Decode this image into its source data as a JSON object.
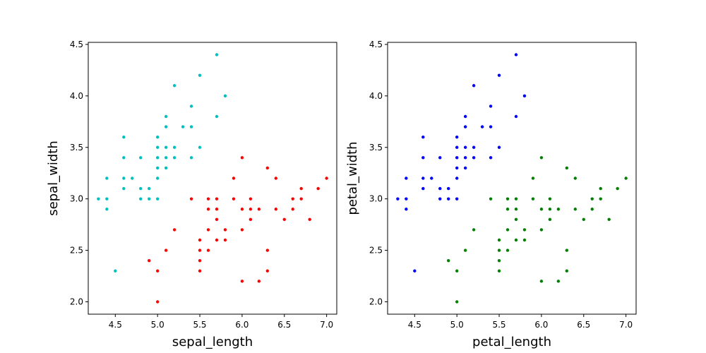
{
  "chart_data": [
    {
      "type": "scatter",
      "xlabel": "sepal_length",
      "ylabel": "sepal_width",
      "xlim": [
        4.18,
        7.12
      ],
      "ylim": [
        1.88,
        4.52
      ],
      "xticks": [
        "4.5",
        "5.0",
        "5.5",
        "6.0",
        "6.5",
        "7.0"
      ],
      "yticks": [
        "2.0",
        "2.5",
        "3.0",
        "3.5",
        "4.0",
        "4.5"
      ],
      "grid": false,
      "series": [
        {
          "color": "#00bfbf",
          "points": [
            [
              4.3,
              3.0
            ],
            [
              4.4,
              2.9
            ],
            [
              4.4,
              3.0
            ],
            [
              4.4,
              3.2
            ],
            [
              4.5,
              2.3
            ],
            [
              4.6,
              3.1
            ],
            [
              4.6,
              3.2
            ],
            [
              4.6,
              3.4
            ],
            [
              4.6,
              3.6
            ],
            [
              4.7,
              3.2
            ],
            [
              4.8,
              3.0
            ],
            [
              4.8,
              3.1
            ],
            [
              4.8,
              3.4
            ],
            [
              4.9,
              3.0
            ],
            [
              4.9,
              3.1
            ],
            [
              5.0,
              3.0
            ],
            [
              5.0,
              3.2
            ],
            [
              5.0,
              3.3
            ],
            [
              5.0,
              3.4
            ],
            [
              5.0,
              3.5
            ],
            [
              5.0,
              3.6
            ],
            [
              5.1,
              3.3
            ],
            [
              5.1,
              3.4
            ],
            [
              5.1,
              3.5
            ],
            [
              5.1,
              3.7
            ],
            [
              5.1,
              3.8
            ],
            [
              5.2,
              3.4
            ],
            [
              5.2,
              3.5
            ],
            [
              5.2,
              4.1
            ],
            [
              5.3,
              3.7
            ],
            [
              5.4,
              3.4
            ],
            [
              5.4,
              3.7
            ],
            [
              5.4,
              3.9
            ],
            [
              5.5,
              3.5
            ],
            [
              5.5,
              4.2
            ],
            [
              5.7,
              3.8
            ],
            [
              5.7,
              4.4
            ],
            [
              5.8,
              4.0
            ]
          ]
        },
        {
          "color": "#ff0000",
          "points": [
            [
              4.9,
              2.4
            ],
            [
              5.0,
              2.0
            ],
            [
              5.0,
              2.3
            ],
            [
              5.1,
              2.5
            ],
            [
              5.2,
              2.7
            ],
            [
              5.4,
              3.0
            ],
            [
              5.5,
              2.3
            ],
            [
              5.5,
              2.4
            ],
            [
              5.5,
              2.5
            ],
            [
              5.5,
              2.6
            ],
            [
              5.6,
              2.5
            ],
            [
              5.6,
              2.7
            ],
            [
              5.6,
              2.9
            ],
            [
              5.6,
              3.0
            ],
            [
              5.7,
              2.6
            ],
            [
              5.7,
              2.8
            ],
            [
              5.7,
              2.9
            ],
            [
              5.7,
              3.0
            ],
            [
              5.8,
              2.6
            ],
            [
              5.8,
              2.7
            ],
            [
              5.9,
              3.0
            ],
            [
              5.9,
              3.2
            ],
            [
              6.0,
              2.2
            ],
            [
              6.0,
              2.7
            ],
            [
              6.0,
              2.9
            ],
            [
              6.0,
              3.4
            ],
            [
              6.1,
              2.8
            ],
            [
              6.1,
              2.9
            ],
            [
              6.1,
              3.0
            ],
            [
              6.2,
              2.2
            ],
            [
              6.2,
              2.9
            ],
            [
              6.3,
              2.3
            ],
            [
              6.3,
              2.5
            ],
            [
              6.3,
              3.3
            ],
            [
              6.4,
              2.9
            ],
            [
              6.4,
              3.2
            ],
            [
              6.5,
              2.8
            ],
            [
              6.6,
              2.9
            ],
            [
              6.6,
              3.0
            ],
            [
              6.7,
              3.0
            ],
            [
              6.7,
              3.1
            ],
            [
              6.8,
              2.8
            ],
            [
              6.9,
              3.1
            ],
            [
              7.0,
              3.2
            ]
          ]
        }
      ]
    },
    {
      "type": "scatter",
      "xlabel": "petal_length",
      "ylabel": "petal_width",
      "xlim": [
        4.18,
        7.12
      ],
      "ylim": [
        1.88,
        4.52
      ],
      "xticks": [
        "4.5",
        "5.0",
        "5.5",
        "6.0",
        "6.5",
        "7.0"
      ],
      "yticks": [
        "2.0",
        "2.5",
        "3.0",
        "3.5",
        "4.0",
        "4.5"
      ],
      "grid": false,
      "series": [
        {
          "color": "#0000ff",
          "points": [
            [
              4.3,
              3.0
            ],
            [
              4.4,
              2.9
            ],
            [
              4.4,
              3.0
            ],
            [
              4.4,
              3.2
            ],
            [
              4.5,
              2.3
            ],
            [
              4.6,
              3.1
            ],
            [
              4.6,
              3.2
            ],
            [
              4.6,
              3.4
            ],
            [
              4.6,
              3.6
            ],
            [
              4.7,
              3.2
            ],
            [
              4.8,
              3.0
            ],
            [
              4.8,
              3.1
            ],
            [
              4.8,
              3.4
            ],
            [
              4.9,
              3.0
            ],
            [
              4.9,
              3.1
            ],
            [
              5.0,
              3.0
            ],
            [
              5.0,
              3.2
            ],
            [
              5.0,
              3.3
            ],
            [
              5.0,
              3.4
            ],
            [
              5.0,
              3.5
            ],
            [
              5.0,
              3.6
            ],
            [
              5.1,
              3.3
            ],
            [
              5.1,
              3.4
            ],
            [
              5.1,
              3.5
            ],
            [
              5.1,
              3.7
            ],
            [
              5.1,
              3.8
            ],
            [
              5.2,
              3.4
            ],
            [
              5.2,
              3.5
            ],
            [
              5.2,
              4.1
            ],
            [
              5.3,
              3.7
            ],
            [
              5.4,
              3.4
            ],
            [
              5.4,
              3.7
            ],
            [
              5.4,
              3.9
            ],
            [
              5.5,
              3.5
            ],
            [
              5.5,
              4.2
            ],
            [
              5.7,
              3.8
            ],
            [
              5.7,
              4.4
            ],
            [
              5.8,
              4.0
            ]
          ]
        },
        {
          "color": "#008000",
          "points": [
            [
              4.9,
              2.4
            ],
            [
              5.0,
              2.0
            ],
            [
              5.0,
              2.3
            ],
            [
              5.1,
              2.5
            ],
            [
              5.2,
              2.7
            ],
            [
              5.4,
              3.0
            ],
            [
              5.5,
              2.3
            ],
            [
              5.5,
              2.4
            ],
            [
              5.5,
              2.5
            ],
            [
              5.5,
              2.6
            ],
            [
              5.6,
              2.5
            ],
            [
              5.6,
              2.7
            ],
            [
              5.6,
              2.9
            ],
            [
              5.6,
              3.0
            ],
            [
              5.7,
              2.6
            ],
            [
              5.7,
              2.8
            ],
            [
              5.7,
              2.9
            ],
            [
              5.7,
              3.0
            ],
            [
              5.8,
              2.6
            ],
            [
              5.8,
              2.7
            ],
            [
              5.9,
              3.0
            ],
            [
              5.9,
              3.2
            ],
            [
              6.0,
              2.2
            ],
            [
              6.0,
              2.7
            ],
            [
              6.0,
              2.9
            ],
            [
              6.0,
              3.4
            ],
            [
              6.1,
              2.8
            ],
            [
              6.1,
              2.9
            ],
            [
              6.1,
              3.0
            ],
            [
              6.2,
              2.2
            ],
            [
              6.2,
              2.9
            ],
            [
              6.3,
              2.3
            ],
            [
              6.3,
              2.5
            ],
            [
              6.3,
              3.3
            ],
            [
              6.4,
              2.9
            ],
            [
              6.4,
              3.2
            ],
            [
              6.5,
              2.8
            ],
            [
              6.6,
              2.9
            ],
            [
              6.6,
              3.0
            ],
            [
              6.7,
              3.0
            ],
            [
              6.7,
              3.1
            ],
            [
              6.8,
              2.8
            ],
            [
              6.9,
              3.1
            ],
            [
              7.0,
              3.2
            ]
          ]
        }
      ]
    }
  ]
}
